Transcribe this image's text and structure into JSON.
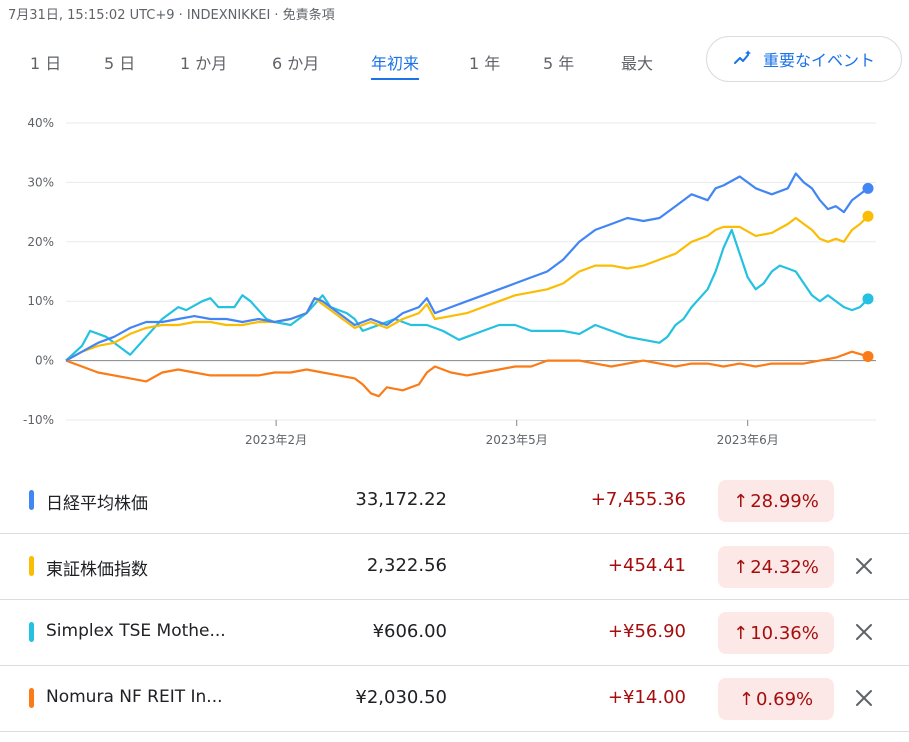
{
  "header": {
    "subtitle": "7月31日, 15:15:02 UTC+9 · INDEXNIKKEI · 免責条項"
  },
  "tabs": [
    {
      "label": "1 日",
      "active": false
    },
    {
      "label": "5 日",
      "active": false
    },
    {
      "label": "1 か月",
      "active": false
    },
    {
      "label": "6 か月",
      "active": false
    },
    {
      "label": "年初来",
      "active": true
    },
    {
      "label": "1 年",
      "active": false
    },
    {
      "label": "5 年",
      "active": false
    },
    {
      "label": "最大",
      "active": false
    }
  ],
  "event_button": {
    "label": "重要なイベント",
    "icon": "sparkle-trend-icon"
  },
  "chart_data": {
    "type": "line",
    "y_ticks": [
      "40%",
      "30%",
      "20%",
      "10%",
      "0%",
      "-10%"
    ],
    "ylim": [
      -10,
      40
    ],
    "x_ticks": [
      {
        "label": "2023年2月",
        "t": 0.262
      },
      {
        "label": "2023年5月",
        "t": 0.562
      },
      {
        "label": "2023年6月",
        "t": 0.85
      }
    ],
    "grid": true,
    "series": [
      {
        "name": "日経平均株価",
        "color": "#4285f4",
        "points": [
          [
            0,
            0
          ],
          [
            0.02,
            1.5
          ],
          [
            0.04,
            3
          ],
          [
            0.06,
            4
          ],
          [
            0.08,
            5.5
          ],
          [
            0.1,
            6.5
          ],
          [
            0.12,
            6.5
          ],
          [
            0.14,
            7
          ],
          [
            0.16,
            7.5
          ],
          [
            0.18,
            7
          ],
          [
            0.2,
            7
          ],
          [
            0.22,
            6.5
          ],
          [
            0.24,
            7
          ],
          [
            0.26,
            6.5
          ],
          [
            0.28,
            7
          ],
          [
            0.3,
            8
          ],
          [
            0.31,
            10.5
          ],
          [
            0.32,
            10
          ],
          [
            0.34,
            8
          ],
          [
            0.36,
            6
          ],
          [
            0.38,
            7
          ],
          [
            0.4,
            6
          ],
          [
            0.42,
            8
          ],
          [
            0.44,
            9
          ],
          [
            0.45,
            10.5
          ],
          [
            0.46,
            8
          ],
          [
            0.48,
            9
          ],
          [
            0.5,
            10
          ],
          [
            0.52,
            11
          ],
          [
            0.54,
            12
          ],
          [
            0.56,
            13
          ],
          [
            0.58,
            14
          ],
          [
            0.6,
            15
          ],
          [
            0.62,
            17
          ],
          [
            0.64,
            20
          ],
          [
            0.66,
            22
          ],
          [
            0.68,
            23
          ],
          [
            0.7,
            24
          ],
          [
            0.72,
            23.5
          ],
          [
            0.74,
            24
          ],
          [
            0.76,
            26
          ],
          [
            0.78,
            28
          ],
          [
            0.8,
            27
          ],
          [
            0.81,
            29
          ],
          [
            0.82,
            29.5
          ],
          [
            0.84,
            31
          ],
          [
            0.86,
            29
          ],
          [
            0.88,
            28
          ],
          [
            0.9,
            29
          ],
          [
            0.91,
            31.5
          ],
          [
            0.92,
            30
          ],
          [
            0.93,
            29
          ],
          [
            0.94,
            27
          ],
          [
            0.95,
            25.5
          ],
          [
            0.96,
            26
          ],
          [
            0.97,
            25
          ],
          [
            0.98,
            27
          ],
          [
            0.99,
            28
          ],
          [
            1,
            29
          ]
        ]
      },
      {
        "name": "東証株価指数",
        "color": "#fbbc04",
        "points": [
          [
            0,
            0
          ],
          [
            0.02,
            1.5
          ],
          [
            0.04,
            2.5
          ],
          [
            0.06,
            3
          ],
          [
            0.08,
            4.5
          ],
          [
            0.1,
            5.5
          ],
          [
            0.12,
            6
          ],
          [
            0.14,
            6
          ],
          [
            0.16,
            6.5
          ],
          [
            0.18,
            6.5
          ],
          [
            0.2,
            6
          ],
          [
            0.22,
            6
          ],
          [
            0.24,
            6.5
          ],
          [
            0.26,
            6.5
          ],
          [
            0.28,
            7
          ],
          [
            0.3,
            8
          ],
          [
            0.31,
            10.5
          ],
          [
            0.32,
            9.5
          ],
          [
            0.34,
            7.5
          ],
          [
            0.36,
            5.5
          ],
          [
            0.38,
            6.5
          ],
          [
            0.4,
            5.5
          ],
          [
            0.42,
            7
          ],
          [
            0.44,
            8
          ],
          [
            0.45,
            9.5
          ],
          [
            0.46,
            7
          ],
          [
            0.48,
            7.5
          ],
          [
            0.5,
            8
          ],
          [
            0.52,
            9
          ],
          [
            0.54,
            10
          ],
          [
            0.56,
            11
          ],
          [
            0.58,
            11.5
          ],
          [
            0.6,
            12
          ],
          [
            0.62,
            13
          ],
          [
            0.64,
            15
          ],
          [
            0.66,
            16
          ],
          [
            0.68,
            16
          ],
          [
            0.7,
            15.5
          ],
          [
            0.72,
            16
          ],
          [
            0.74,
            17
          ],
          [
            0.76,
            18
          ],
          [
            0.78,
            20
          ],
          [
            0.8,
            21
          ],
          [
            0.81,
            22
          ],
          [
            0.82,
            22.5
          ],
          [
            0.84,
            22.5
          ],
          [
            0.86,
            21
          ],
          [
            0.88,
            21.5
          ],
          [
            0.9,
            23
          ],
          [
            0.91,
            24
          ],
          [
            0.92,
            23
          ],
          [
            0.93,
            22
          ],
          [
            0.94,
            20.5
          ],
          [
            0.95,
            20
          ],
          [
            0.96,
            20.5
          ],
          [
            0.97,
            20
          ],
          [
            0.98,
            22
          ],
          [
            0.99,
            23
          ],
          [
            1,
            24.3
          ]
        ]
      },
      {
        "name": "Simplex TSE Mothe...",
        "color": "#24c1e0",
        "points": [
          [
            0,
            0
          ],
          [
            0.02,
            2.5
          ],
          [
            0.03,
            5
          ],
          [
            0.05,
            4
          ],
          [
            0.07,
            2
          ],
          [
            0.08,
            1
          ],
          [
            0.1,
            4
          ],
          [
            0.12,
            7
          ],
          [
            0.14,
            9
          ],
          [
            0.15,
            8.5
          ],
          [
            0.17,
            10
          ],
          [
            0.18,
            10.5
          ],
          [
            0.19,
            9
          ],
          [
            0.21,
            9
          ],
          [
            0.22,
            11
          ],
          [
            0.23,
            10
          ],
          [
            0.25,
            7
          ],
          [
            0.26,
            6.5
          ],
          [
            0.28,
            6
          ],
          [
            0.3,
            8
          ],
          [
            0.32,
            11
          ],
          [
            0.33,
            9
          ],
          [
            0.35,
            8
          ],
          [
            0.36,
            7
          ],
          [
            0.37,
            5
          ],
          [
            0.39,
            6
          ],
          [
            0.41,
            7
          ],
          [
            0.43,
            6
          ],
          [
            0.45,
            6
          ],
          [
            0.47,
            5
          ],
          [
            0.49,
            3.5
          ],
          [
            0.5,
            4
          ],
          [
            0.52,
            5
          ],
          [
            0.54,
            6
          ],
          [
            0.56,
            6
          ],
          [
            0.58,
            5
          ],
          [
            0.6,
            5
          ],
          [
            0.62,
            5
          ],
          [
            0.64,
            4.5
          ],
          [
            0.66,
            6
          ],
          [
            0.68,
            5
          ],
          [
            0.7,
            4
          ],
          [
            0.72,
            3.5
          ],
          [
            0.74,
            3
          ],
          [
            0.75,
            4
          ],
          [
            0.76,
            6
          ],
          [
            0.77,
            7
          ],
          [
            0.78,
            9
          ],
          [
            0.79,
            10.5
          ],
          [
            0.8,
            12
          ],
          [
            0.81,
            15
          ],
          [
            0.82,
            19
          ],
          [
            0.83,
            22
          ],
          [
            0.84,
            18
          ],
          [
            0.85,
            14
          ],
          [
            0.86,
            12
          ],
          [
            0.87,
            13
          ],
          [
            0.88,
            15
          ],
          [
            0.89,
            16
          ],
          [
            0.9,
            15.5
          ],
          [
            0.91,
            15
          ],
          [
            0.92,
            13
          ],
          [
            0.93,
            11
          ],
          [
            0.94,
            10
          ],
          [
            0.95,
            11
          ],
          [
            0.96,
            10
          ],
          [
            0.97,
            9
          ],
          [
            0.98,
            8.5
          ],
          [
            0.99,
            9
          ],
          [
            1,
            10.4
          ]
        ]
      },
      {
        "name": "Nomura NF REIT In...",
        "color": "#fa7b17",
        "points": [
          [
            0,
            0
          ],
          [
            0.02,
            -1
          ],
          [
            0.04,
            -2
          ],
          [
            0.06,
            -2.5
          ],
          [
            0.08,
            -3
          ],
          [
            0.1,
            -3.5
          ],
          [
            0.12,
            -2
          ],
          [
            0.14,
            -1.5
          ],
          [
            0.16,
            -2
          ],
          [
            0.18,
            -2.5
          ],
          [
            0.2,
            -2.5
          ],
          [
            0.22,
            -2.5
          ],
          [
            0.24,
            -2.5
          ],
          [
            0.26,
            -2
          ],
          [
            0.28,
            -2
          ],
          [
            0.3,
            -1.5
          ],
          [
            0.32,
            -2
          ],
          [
            0.34,
            -2.5
          ],
          [
            0.36,
            -3
          ],
          [
            0.37,
            -4
          ],
          [
            0.38,
            -5.5
          ],
          [
            0.39,
            -6
          ],
          [
            0.4,
            -4.5
          ],
          [
            0.42,
            -5
          ],
          [
            0.44,
            -4
          ],
          [
            0.45,
            -2
          ],
          [
            0.46,
            -1
          ],
          [
            0.48,
            -2
          ],
          [
            0.5,
            -2.5
          ],
          [
            0.52,
            -2
          ],
          [
            0.54,
            -1.5
          ],
          [
            0.56,
            -1
          ],
          [
            0.58,
            -1
          ],
          [
            0.6,
            0
          ],
          [
            0.62,
            0
          ],
          [
            0.64,
            0
          ],
          [
            0.66,
            -0.5
          ],
          [
            0.68,
            -1
          ],
          [
            0.7,
            -0.5
          ],
          [
            0.72,
            0
          ],
          [
            0.74,
            -0.5
          ],
          [
            0.76,
            -1
          ],
          [
            0.78,
            -0.5
          ],
          [
            0.8,
            -0.5
          ],
          [
            0.82,
            -1
          ],
          [
            0.84,
            -0.5
          ],
          [
            0.86,
            -1
          ],
          [
            0.88,
            -0.5
          ],
          [
            0.9,
            -0.5
          ],
          [
            0.92,
            -0.5
          ],
          [
            0.94,
            0
          ],
          [
            0.96,
            0.5
          ],
          [
            0.98,
            1.5
          ],
          [
            1,
            0.7
          ]
        ]
      }
    ]
  },
  "rows": [
    {
      "name": "日経平均株価",
      "color": "#4285f4",
      "price": "33,172.22",
      "change": "+7,455.36",
      "pct": "28.99%",
      "removable": false
    },
    {
      "name": "東証株価指数",
      "color": "#fbbc04",
      "price": "2,322.56",
      "change": "+454.41",
      "pct": "24.32%",
      "removable": true
    },
    {
      "name": "Simplex TSE Mothe...",
      "color": "#24c1e0",
      "price": "¥606.00",
      "change": "+¥56.90",
      "pct": "10.36%",
      "removable": true
    },
    {
      "name": "Nomura NF REIT In...",
      "color": "#fa7b17",
      "price": "¥2,030.50",
      "change": "+¥14.00",
      "pct": "0.69%",
      "removable": true
    }
  ]
}
